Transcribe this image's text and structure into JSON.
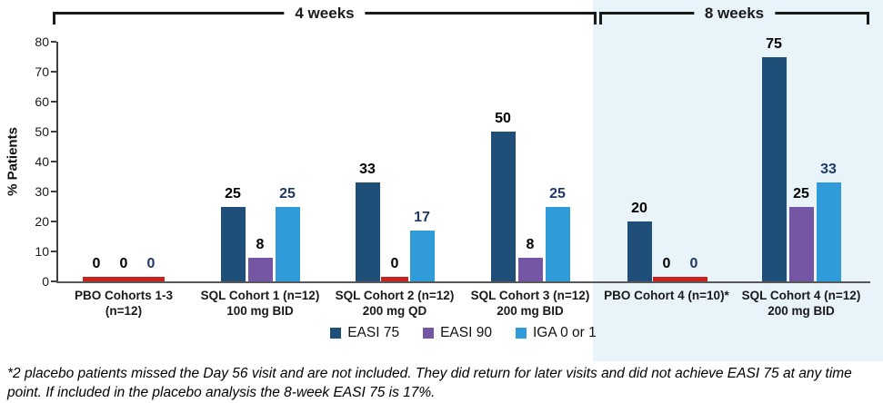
{
  "header": {
    "bracket_4w": "4 weeks",
    "bracket_8w": "8 weeks"
  },
  "chart_data": {
    "type": "bar",
    "ylabel": "% Patients",
    "ylim": [
      0,
      80
    ],
    "yticks": [
      0,
      10,
      20,
      30,
      40,
      50,
      60,
      70,
      80
    ],
    "grid": false,
    "legend_position": "bottom-center",
    "categories": [
      {
        "line1": "PBO Cohorts 1-3",
        "line2": "(n=12)",
        "period": "4 weeks"
      },
      {
        "line1": "SQL Cohort 1 (n=12)",
        "line2": "100 mg BID",
        "period": "4 weeks"
      },
      {
        "line1": "SQL Cohort 2 (n=12)",
        "line2": "200 mg QD",
        "period": "4 weeks"
      },
      {
        "line1": "SQL Cohort 3 (n=12)",
        "line2": "200 mg BID",
        "period": "4 weeks"
      },
      {
        "line1": "PBO Cohort 4 (n=10)*",
        "line2": "",
        "period": "8 weeks"
      },
      {
        "line1": "SQL Cohort 4 (n=12)",
        "line2": "200 mg BID",
        "period": "8 weeks"
      }
    ],
    "series": [
      {
        "name": "EASI 75",
        "color": "#1F4E79",
        "values": [
          0,
          25,
          33,
          50,
          20,
          75
        ]
      },
      {
        "name": "EASI 90",
        "color": "#7456A4",
        "values": [
          0,
          8,
          0,
          8,
          0,
          25
        ]
      },
      {
        "name": "IGA 0 or 1",
        "color": "#2F9BD8",
        "values": [
          0,
          25,
          17,
          25,
          0,
          33
        ]
      }
    ],
    "zero_bar_color": "#C9211C",
    "value_label_color_default": "#000000",
    "value_label_color_iga": "#1F3864",
    "panel_color": "#E9F3FA"
  },
  "footnote": "*2 placebo patients missed the Day 56 visit and are not included. They did return for later visits and did not achieve EASI 75 at any time point. If included in the placebo analysis the 8-week EASI 75 is 17%."
}
